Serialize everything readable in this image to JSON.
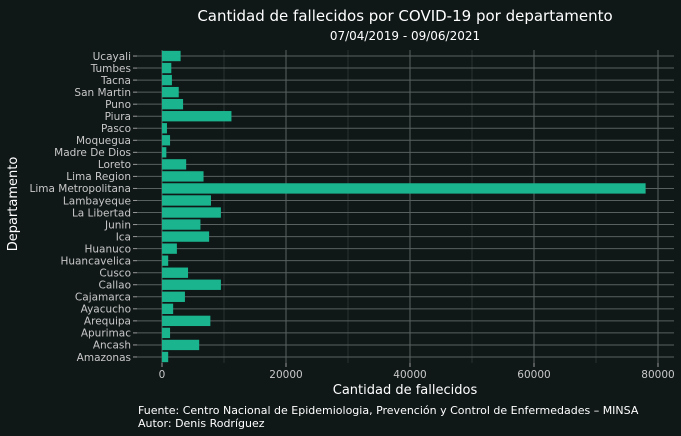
{
  "chart_data": {
    "type": "bar",
    "orientation": "horizontal",
    "title": "Cantidad de fallecidos por COVID-19 por departamento",
    "subtitle": "07/04/2019 - 09/06/2021",
    "xlabel": "Cantidad de fallecidos",
    "ylabel": "Departamento",
    "xlim": [
      0,
      80000
    ],
    "xticks": [
      0,
      20000,
      40000,
      60000,
      80000
    ],
    "grid": true,
    "bar_color": "#1ab58e",
    "categories": [
      "Amazonas",
      "Ancash",
      "Apurimac",
      "Arequipa",
      "Ayacucho",
      "Cajamarca",
      "Callao",
      "Cusco",
      "Huancavelica",
      "Huanuco",
      "Ica",
      "Junin",
      "La Libertad",
      "Lambayeque",
      "Lima Metropolitana",
      "Lima Region",
      "Loreto",
      "Madre De Dios",
      "Moquegua",
      "Pasco",
      "Piura",
      "Puno",
      "San Martin",
      "Tacna",
      "Tumbes",
      "Ucayali"
    ],
    "values": [
      1000,
      6000,
      1300,
      7800,
      1800,
      3700,
      9500,
      4200,
      1000,
      2400,
      7600,
      6200,
      9500,
      7900,
      78000,
      6700,
      3900,
      700,
      1300,
      800,
      11200,
      3400,
      2700,
      1600,
      1500,
      3000
    ]
  },
  "caption": {
    "source": "Fuente: Centro Nacional de Epidemiologia, Prevención y Control de Enfermedades – MINSA",
    "author": "Autor: Denis Rodríguez"
  }
}
